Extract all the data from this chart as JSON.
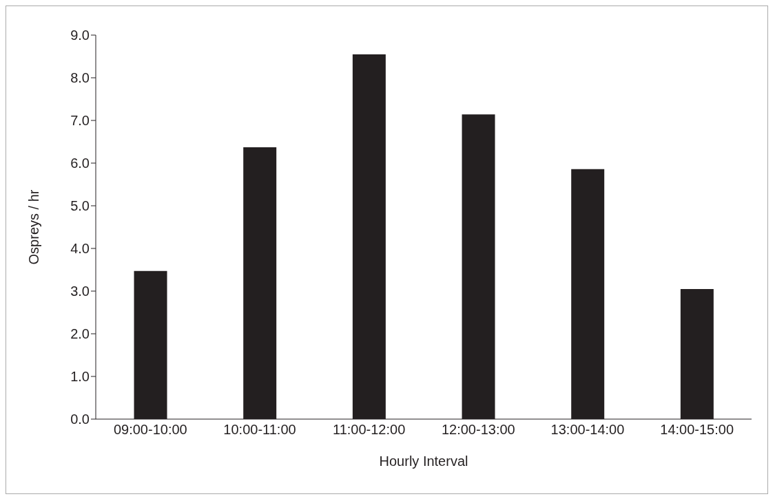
{
  "chart_data": {
    "type": "bar",
    "xlabel": "Hourly Interval",
    "ylabel": "Ospreys / hr",
    "categories": [
      "09:00-10:00",
      "10:00-11:00",
      "11:00-12:00",
      "12:00-13:00",
      "13:00-14:00",
      "14:00-15:00"
    ],
    "values": [
      3.47,
      6.37,
      8.55,
      7.14,
      5.86,
      3.05
    ],
    "color": "#231f20",
    "ylim": [
      0,
      9
    ],
    "yticks": [
      {
        "value": 0,
        "label": "0.0"
      },
      {
        "value": 1,
        "label": "1.0"
      },
      {
        "value": 2,
        "label": "2.0"
      },
      {
        "value": 3,
        "label": "3.0"
      },
      {
        "value": 4,
        "label": "4.0"
      },
      {
        "value": 5,
        "label": "5.0"
      },
      {
        "value": 6,
        "label": "6.0"
      },
      {
        "value": 7,
        "label": "7.0"
      },
      {
        "value": 8,
        "label": "8.0"
      },
      {
        "value": 9,
        "label": "9.0"
      }
    ],
    "grid": false,
    "legend": false
  }
}
